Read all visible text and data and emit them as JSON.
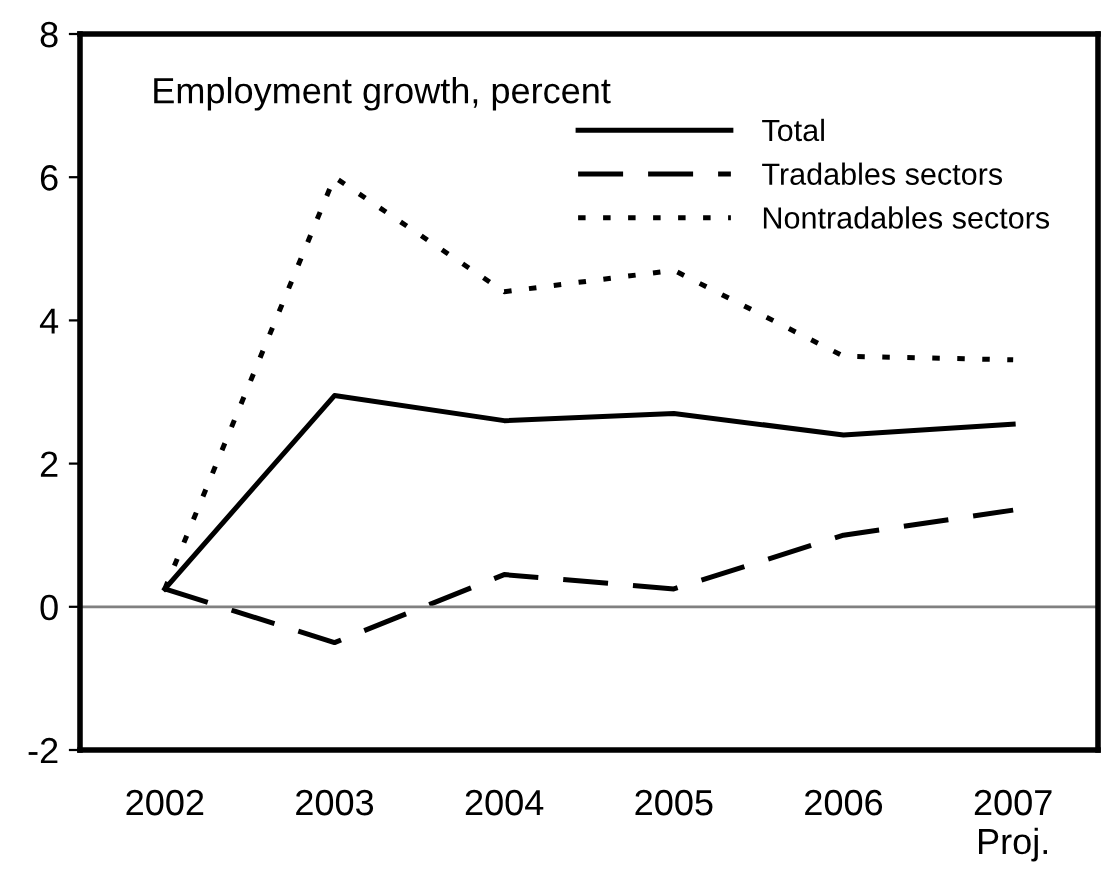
{
  "chart_data": {
    "type": "line",
    "annotations": [
      "Employment growth, percent"
    ],
    "categories": [
      "2002",
      "2003",
      "2004",
      "2005",
      "2006",
      "2007\nProj."
    ],
    "series": [
      {
        "name": "Total",
        "color": "#000000",
        "line_style": "solid",
        "values": [
          0.25,
          2.95,
          2.6,
          2.7,
          2.4,
          2.55
        ]
      },
      {
        "name": "Tradables sectors",
        "color": "#000000",
        "line_style": "dashed",
        "values": [
          0.25,
          -0.5,
          0.45,
          0.25,
          1.0,
          1.35
        ]
      },
      {
        "name": "Nontradables sectors",
        "color": "#000000",
        "line_style": "dotted",
        "values": [
          0.25,
          6.0,
          4.4,
          4.7,
          3.5,
          3.45
        ]
      }
    ],
    "ylim": [
      -2,
      8
    ],
    "yticks": [
      -2,
      0,
      2,
      4,
      6,
      8
    ],
    "ref_lines": [
      {
        "axis": "y",
        "value": 0,
        "color": "#808080"
      }
    ],
    "grid": false,
    "legend": "top right"
  }
}
